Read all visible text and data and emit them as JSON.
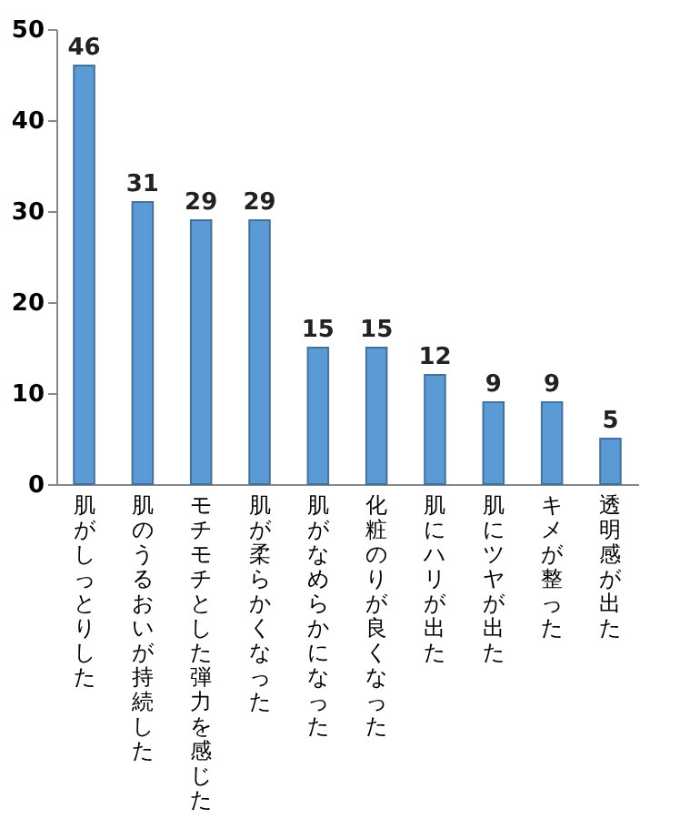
{
  "chart_data": {
    "type": "bar",
    "categories": [
      "肌がしっとりした",
      "肌のうるおいが持続した",
      "モチモチとした弾力を感じた",
      "肌が柔らかくなった",
      "肌がなめらかになった",
      "化粧のりが良くなった",
      "肌にハリが出た",
      "肌にツヤが出た",
      "キメが整った",
      "透明感が出た"
    ],
    "values": [
      46,
      31,
      29,
      29,
      15,
      15,
      12,
      9,
      9,
      5
    ],
    "color": "#5b9bd5",
    "ylim": [
      0,
      50
    ],
    "yticks": [
      0,
      10,
      20,
      30,
      40,
      50
    ],
    "data_labels": true
  }
}
